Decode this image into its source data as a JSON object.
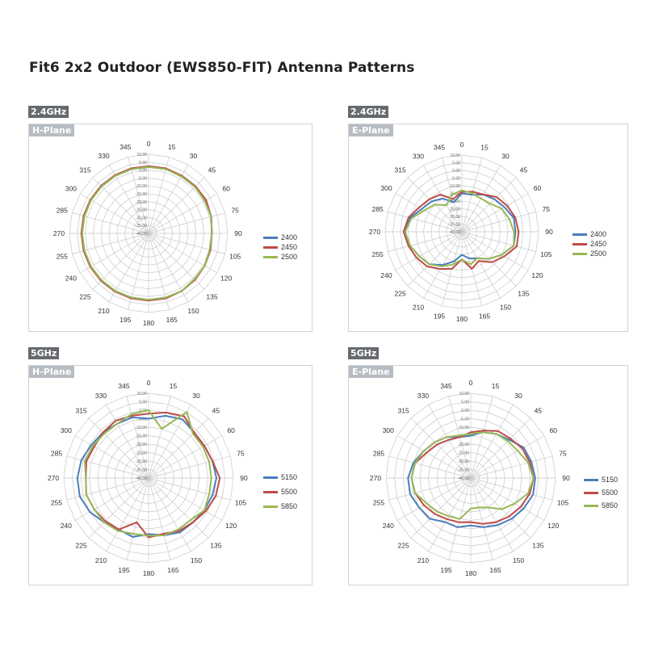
{
  "page_title": "Fit6 2x2 Outdoor (EWS850-FIT) Antenna Patterns",
  "band_24": "2.4GHz",
  "band_5": "5GHz",
  "colors": {
    "series1": "#4a7ebb",
    "series2": "#be4b48",
    "series3": "#98b954",
    "grid": "#c8c8c8",
    "band_bg": "#666a70",
    "plane_bg": "#b6bcc2"
  },
  "chart_data": [
    {
      "type": "radar",
      "band": "2.4GHz",
      "plane": "H-Plane",
      "angles": [
        "0",
        "15",
        "30",
        "45",
        "60",
        "75",
        "90",
        "105",
        "120",
        "135",
        "150",
        "165",
        "180",
        "195",
        "210",
        "225",
        "240",
        "255",
        "270",
        "285",
        "300",
        "315",
        "330",
        "345"
      ],
      "radial_ticks": [
        "10.00",
        "5.00",
        "0.00",
        "-5.00",
        "-10.00",
        "-15.00",
        "-20.00",
        "-25.00",
        "-30.00",
        "-35.00",
        "-40.00"
      ],
      "rlim": [
        -40,
        10
      ],
      "series": [
        {
          "name": "2400",
          "color": "#4a7ebb",
          "values": [
            2,
            2,
            2,
            2,
            1,
            1,
            0,
            0,
            1,
            1,
            2,
            2,
            2,
            2,
            2,
            2,
            2,
            2,
            2,
            2,
            2,
            2,
            2,
            2
          ]
        },
        {
          "name": "2450",
          "color": "#be4b48",
          "values": [
            2.5,
            2.5,
            2,
            2,
            2,
            1,
            0,
            0.5,
            1,
            1.5,
            2,
            2.5,
            2.5,
            2.5,
            2.5,
            2.5,
            2.5,
            2.5,
            2.5,
            2.5,
            2.5,
            2.5,
            2.5,
            2.5
          ]
        },
        {
          "name": "2500",
          "color": "#98b954",
          "values": [
            2,
            2,
            1.5,
            1.5,
            1,
            1,
            0,
            0,
            1,
            1,
            2,
            2,
            2,
            2,
            2,
            2,
            2,
            2,
            2,
            2,
            2,
            2,
            2,
            2
          ]
        }
      ]
    },
    {
      "type": "radar",
      "band": "2.4GHz",
      "plane": "E-Plane",
      "angles": [
        "0",
        "15",
        "30",
        "45",
        "60",
        "75",
        "90",
        "105",
        "120",
        "135",
        "150",
        "165",
        "180",
        "195",
        "210",
        "225",
        "240",
        "255",
        "270",
        "285",
        "300",
        "315",
        "330",
        "345"
      ],
      "radial_ticks": [
        "10.00",
        "5.00",
        "0.00",
        "-5.00",
        "-10.00",
        "-15.00",
        "-20.00",
        "-25.00",
        "-30.00",
        "-35.00",
        "-40.00"
      ],
      "rlim": [
        -40,
        10
      ],
      "series": [
        {
          "name": "2400",
          "color": "#4a7ebb",
          "values": [
            -15,
            -15,
            -12,
            -10,
            -8,
            -5,
            -5,
            -5,
            -10,
            -15,
            -20,
            -22,
            -25,
            -20,
            -15,
            -10,
            -8,
            -5,
            -3,
            -5,
            -10,
            -12,
            -15,
            -20
          ]
        },
        {
          "name": "2450",
          "color": "#be4b48",
          "values": [
            -14,
            -13,
            -12,
            -8,
            -6,
            -4,
            -3,
            -3,
            -8,
            -12,
            -18,
            -15,
            -22,
            -15,
            -12,
            -8,
            -6,
            -4,
            -2,
            -4,
            -8,
            -10,
            -12,
            -18
          ]
        },
        {
          "name": "2500",
          "color": "#98b954",
          "values": [
            -13,
            -14,
            -15,
            -14,
            -10,
            -8,
            -6,
            -5,
            -10,
            -15,
            -20,
            -18,
            -22,
            -18,
            -14,
            -10,
            -8,
            -5,
            -3,
            -6,
            -12,
            -15,
            -20,
            -15
          ]
        }
      ]
    },
    {
      "type": "radar",
      "band": "5GHz",
      "plane": "H-Plane",
      "angles": [
        "0",
        "15",
        "30",
        "45",
        "60",
        "75",
        "90",
        "105",
        "120",
        "135",
        "150",
        "165",
        "180",
        "195",
        "210",
        "225",
        "240",
        "255",
        "270",
        "285",
        "300",
        "315",
        "330",
        "345"
      ],
      "radial_ticks": [
        "10.00",
        "5.00",
        "0.00",
        "-5.00",
        "-10.00",
        "-15.00",
        "-20.00",
        "-25.00",
        "-30.00",
        "-35.00",
        "-40.00"
      ],
      "rlim": [
        -40,
        10
      ],
      "series": [
        {
          "name": "5150",
          "color": "#4a7ebb",
          "values": [
            -5,
            -2,
            0,
            -2,
            -2,
            -1,
            0,
            -1,
            -2,
            -3,
            -3,
            -5,
            -7,
            -4,
            -5,
            -3,
            0,
            2,
            2,
            1,
            -1,
            -2,
            -3,
            -3
          ]
        },
        {
          "name": "5500",
          "color": "#be4b48",
          "values": [
            -2,
            0,
            2,
            -2,
            -2,
            -1,
            2,
            1,
            -1,
            -3,
            -4,
            -6,
            -5,
            -13,
            -5,
            -4,
            -3,
            -2,
            -3,
            -2,
            -3,
            -2,
            -1,
            -2
          ]
        },
        {
          "name": "5850",
          "color": "#98b954",
          "values": [
            0,
            -10,
            5,
            -3,
            -3,
            -3,
            -3,
            -3,
            -2,
            -5,
            -5,
            -5,
            -6,
            -6,
            -4,
            -3,
            -3,
            -2,
            -3,
            -1,
            -2,
            -3,
            -3,
            -1
          ]
        }
      ]
    },
    {
      "type": "radar",
      "band": "5GHz",
      "plane": "E-Plane",
      "angles": [
        "0",
        "15",
        "30",
        "45",
        "60",
        "75",
        "90",
        "105",
        "120",
        "135",
        "150",
        "165",
        "180",
        "195",
        "210",
        "225",
        "240",
        "255",
        "270",
        "285",
        "300",
        "315",
        "330",
        "345"
      ],
      "radial_ticks": [
        "10.00",
        "5.00",
        "0.00",
        "-5.00",
        "-10.00",
        "-15.00",
        "-20.00",
        "-25.00",
        "-30.00",
        "-35.00",
        "-40.00"
      ],
      "rlim": [
        -40,
        10
      ],
      "series": [
        {
          "name": "5150",
          "color": "#4a7ebb",
          "values": [
            -15,
            -12,
            -10,
            -8,
            -4,
            -3,
            -2,
            -2,
            -4,
            -6,
            -8,
            -10,
            -12,
            -10,
            -10,
            -6,
            -5,
            -3,
            -3,
            -5,
            -8,
            -10,
            -12,
            -15
          ]
        },
        {
          "name": "5500",
          "color": "#be4b48",
          "values": [
            -13,
            -11,
            -8,
            -7,
            -5,
            -4,
            -3,
            -4,
            -6,
            -8,
            -10,
            -12,
            -14,
            -13,
            -12,
            -10,
            -8,
            -6,
            -5,
            -6,
            -10,
            -12,
            -14,
            -15
          ]
        },
        {
          "name": "5850",
          "color": "#98b954",
          "values": [
            -14,
            -12,
            -10,
            -9,
            -8,
            -5,
            -3,
            -5,
            -10,
            -14,
            -20,
            -22,
            -22,
            -15,
            -14,
            -12,
            -10,
            -6,
            -5,
            -6,
            -8,
            -10,
            -12,
            -14
          ]
        }
      ]
    }
  ]
}
